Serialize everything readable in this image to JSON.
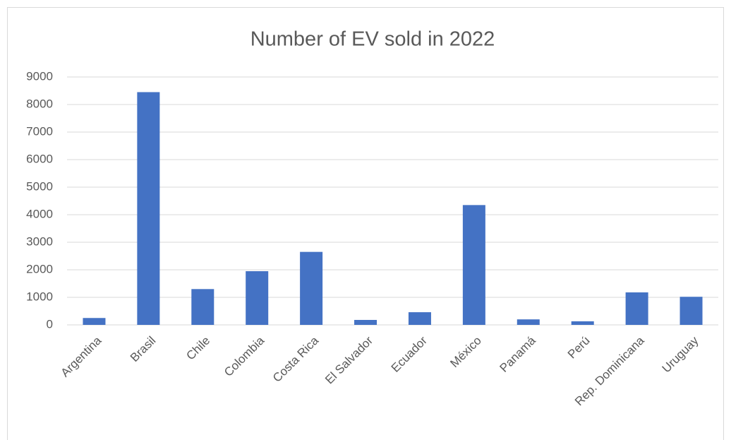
{
  "chart_data": {
    "type": "bar",
    "title": "Number of EV sold in 2022",
    "categories": [
      "Argentina",
      "Brasil",
      "Chile",
      "Colombia",
      "Costa Rica",
      "El Salvador",
      "Ecuador",
      "México",
      "Panamá",
      "Perú",
      "Rep. Dominicana",
      "Uruguay"
    ],
    "values": [
      250,
      8450,
      1300,
      1950,
      2650,
      180,
      460,
      4350,
      200,
      130,
      1180,
      1020
    ],
    "color": "#4472c4",
    "ylim": [
      0,
      9000
    ],
    "yticks": [
      0,
      1000,
      2000,
      3000,
      4000,
      5000,
      6000,
      7000,
      8000,
      9000
    ],
    "grid": true
  }
}
